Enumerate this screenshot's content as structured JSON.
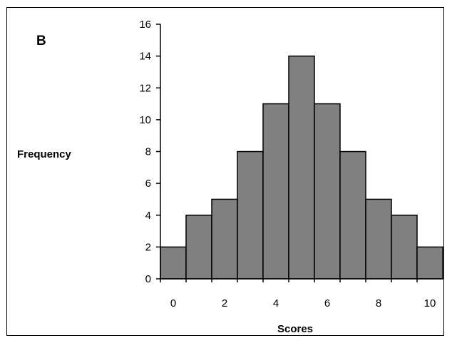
{
  "chart_data": {
    "type": "bar",
    "panel_label": "B",
    "title": "",
    "xlabel": "Scores",
    "ylabel": "Frequency",
    "categories": [
      "0",
      "1",
      "2",
      "3",
      "4",
      "5",
      "6",
      "7",
      "8",
      "9",
      "10"
    ],
    "values": [
      2,
      4,
      5,
      8,
      11,
      14,
      11,
      8,
      5,
      4,
      2
    ],
    "x_tick_labels": [
      "0",
      "2",
      "4",
      "6",
      "8",
      "10"
    ],
    "y_tick_labels": [
      "0",
      "2",
      "4",
      "6",
      "8",
      "10",
      "12",
      "14",
      "16"
    ],
    "ylim": [
      0,
      16
    ],
    "grid": false,
    "legend": "none",
    "colors": {
      "bar_fill": "#808080",
      "bar_stroke": "#000000"
    }
  }
}
